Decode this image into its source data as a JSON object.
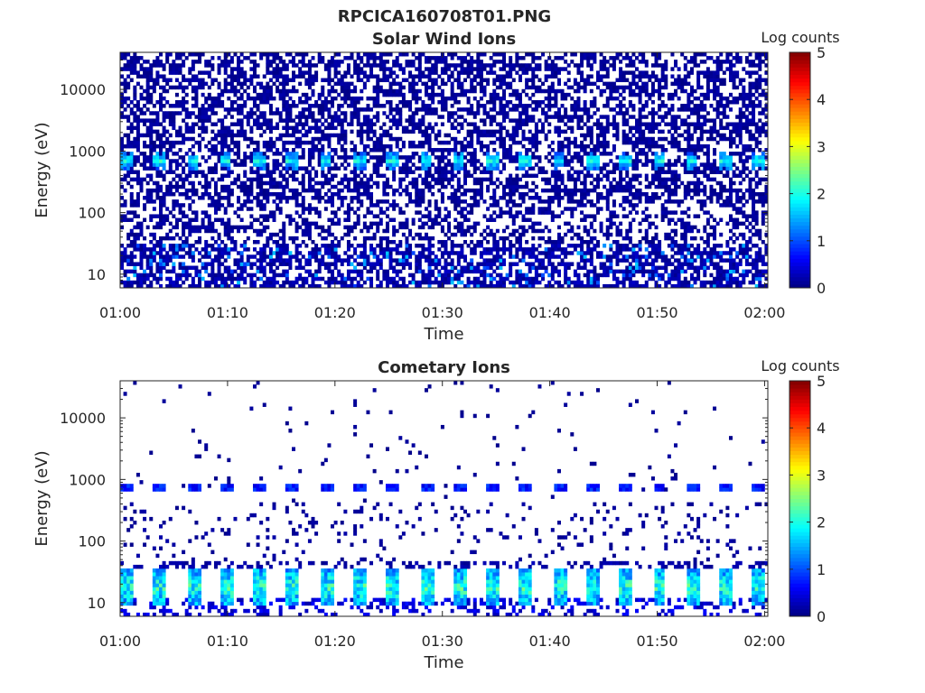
{
  "figure_title": "RPCICA160708T01.PNG",
  "colors": {
    "colormap": "jet",
    "background": "#ffffff",
    "axis": "#262626"
  },
  "chart_data": [
    {
      "type": "heatmap",
      "title": "Solar Wind Ions",
      "xlabel": "Time",
      "ylabel": "Energy (eV)",
      "x_tick_labels": [
        "01:00",
        "01:10",
        "01:20",
        "01:30",
        "01:40",
        "01:50",
        "02:00"
      ],
      "x_tick_minutes": [
        0,
        10,
        20,
        30,
        40,
        50,
        60
      ],
      "xlim_minutes": [
        0,
        60.3
      ],
      "y_scale": "log",
      "ylim": [
        6,
        40000
      ],
      "y_tick_labels": [
        "10",
        "100",
        "1000",
        "10000"
      ],
      "y_tick_values": [
        10,
        100,
        1000,
        10000
      ],
      "colorbar": {
        "label": "Log counts",
        "range": [
          0,
          5
        ],
        "tick_labels": [
          "0",
          "1",
          "2",
          "3",
          "4",
          "5"
        ]
      },
      "features": {
        "solar_wind_beam": {
          "energy_eV": 700,
          "peak_log_counts": 2.3,
          "period_minutes": 3.1
        },
        "background_noise_log_counts": 0.2,
        "low_energy_bursts": {
          "energy_range_eV": [
            6,
            30
          ],
          "peak_log_counts": 1.6
        }
      }
    },
    {
      "type": "heatmap",
      "title": "Cometary Ions",
      "xlabel": "Time",
      "ylabel": "Energy (eV)",
      "x_tick_labels": [
        "01:00",
        "01:10",
        "01:20",
        "01:30",
        "01:40",
        "01:50",
        "02:00"
      ],
      "x_tick_minutes": [
        0,
        10,
        20,
        30,
        40,
        50,
        60
      ],
      "xlim_minutes": [
        0,
        60.3
      ],
      "y_scale": "log",
      "ylim": [
        6,
        40000
      ],
      "y_tick_labels": [
        "10",
        "100",
        "1000",
        "10000"
      ],
      "y_tick_values": [
        10,
        100,
        1000,
        10000
      ],
      "colorbar": {
        "label": "Log counts",
        "range": [
          0,
          5
        ],
        "tick_labels": [
          "0",
          "1",
          "2",
          "3",
          "4",
          "5"
        ]
      },
      "features": {
        "beam_at_700eV_log_counts": 0.9,
        "low_energy_population": {
          "energy_range_eV": [
            9,
            35
          ],
          "peak_log_counts": 2.6,
          "period_minutes": 3.1
        },
        "sparse_noise_log_counts": 0.1
      }
    }
  ]
}
